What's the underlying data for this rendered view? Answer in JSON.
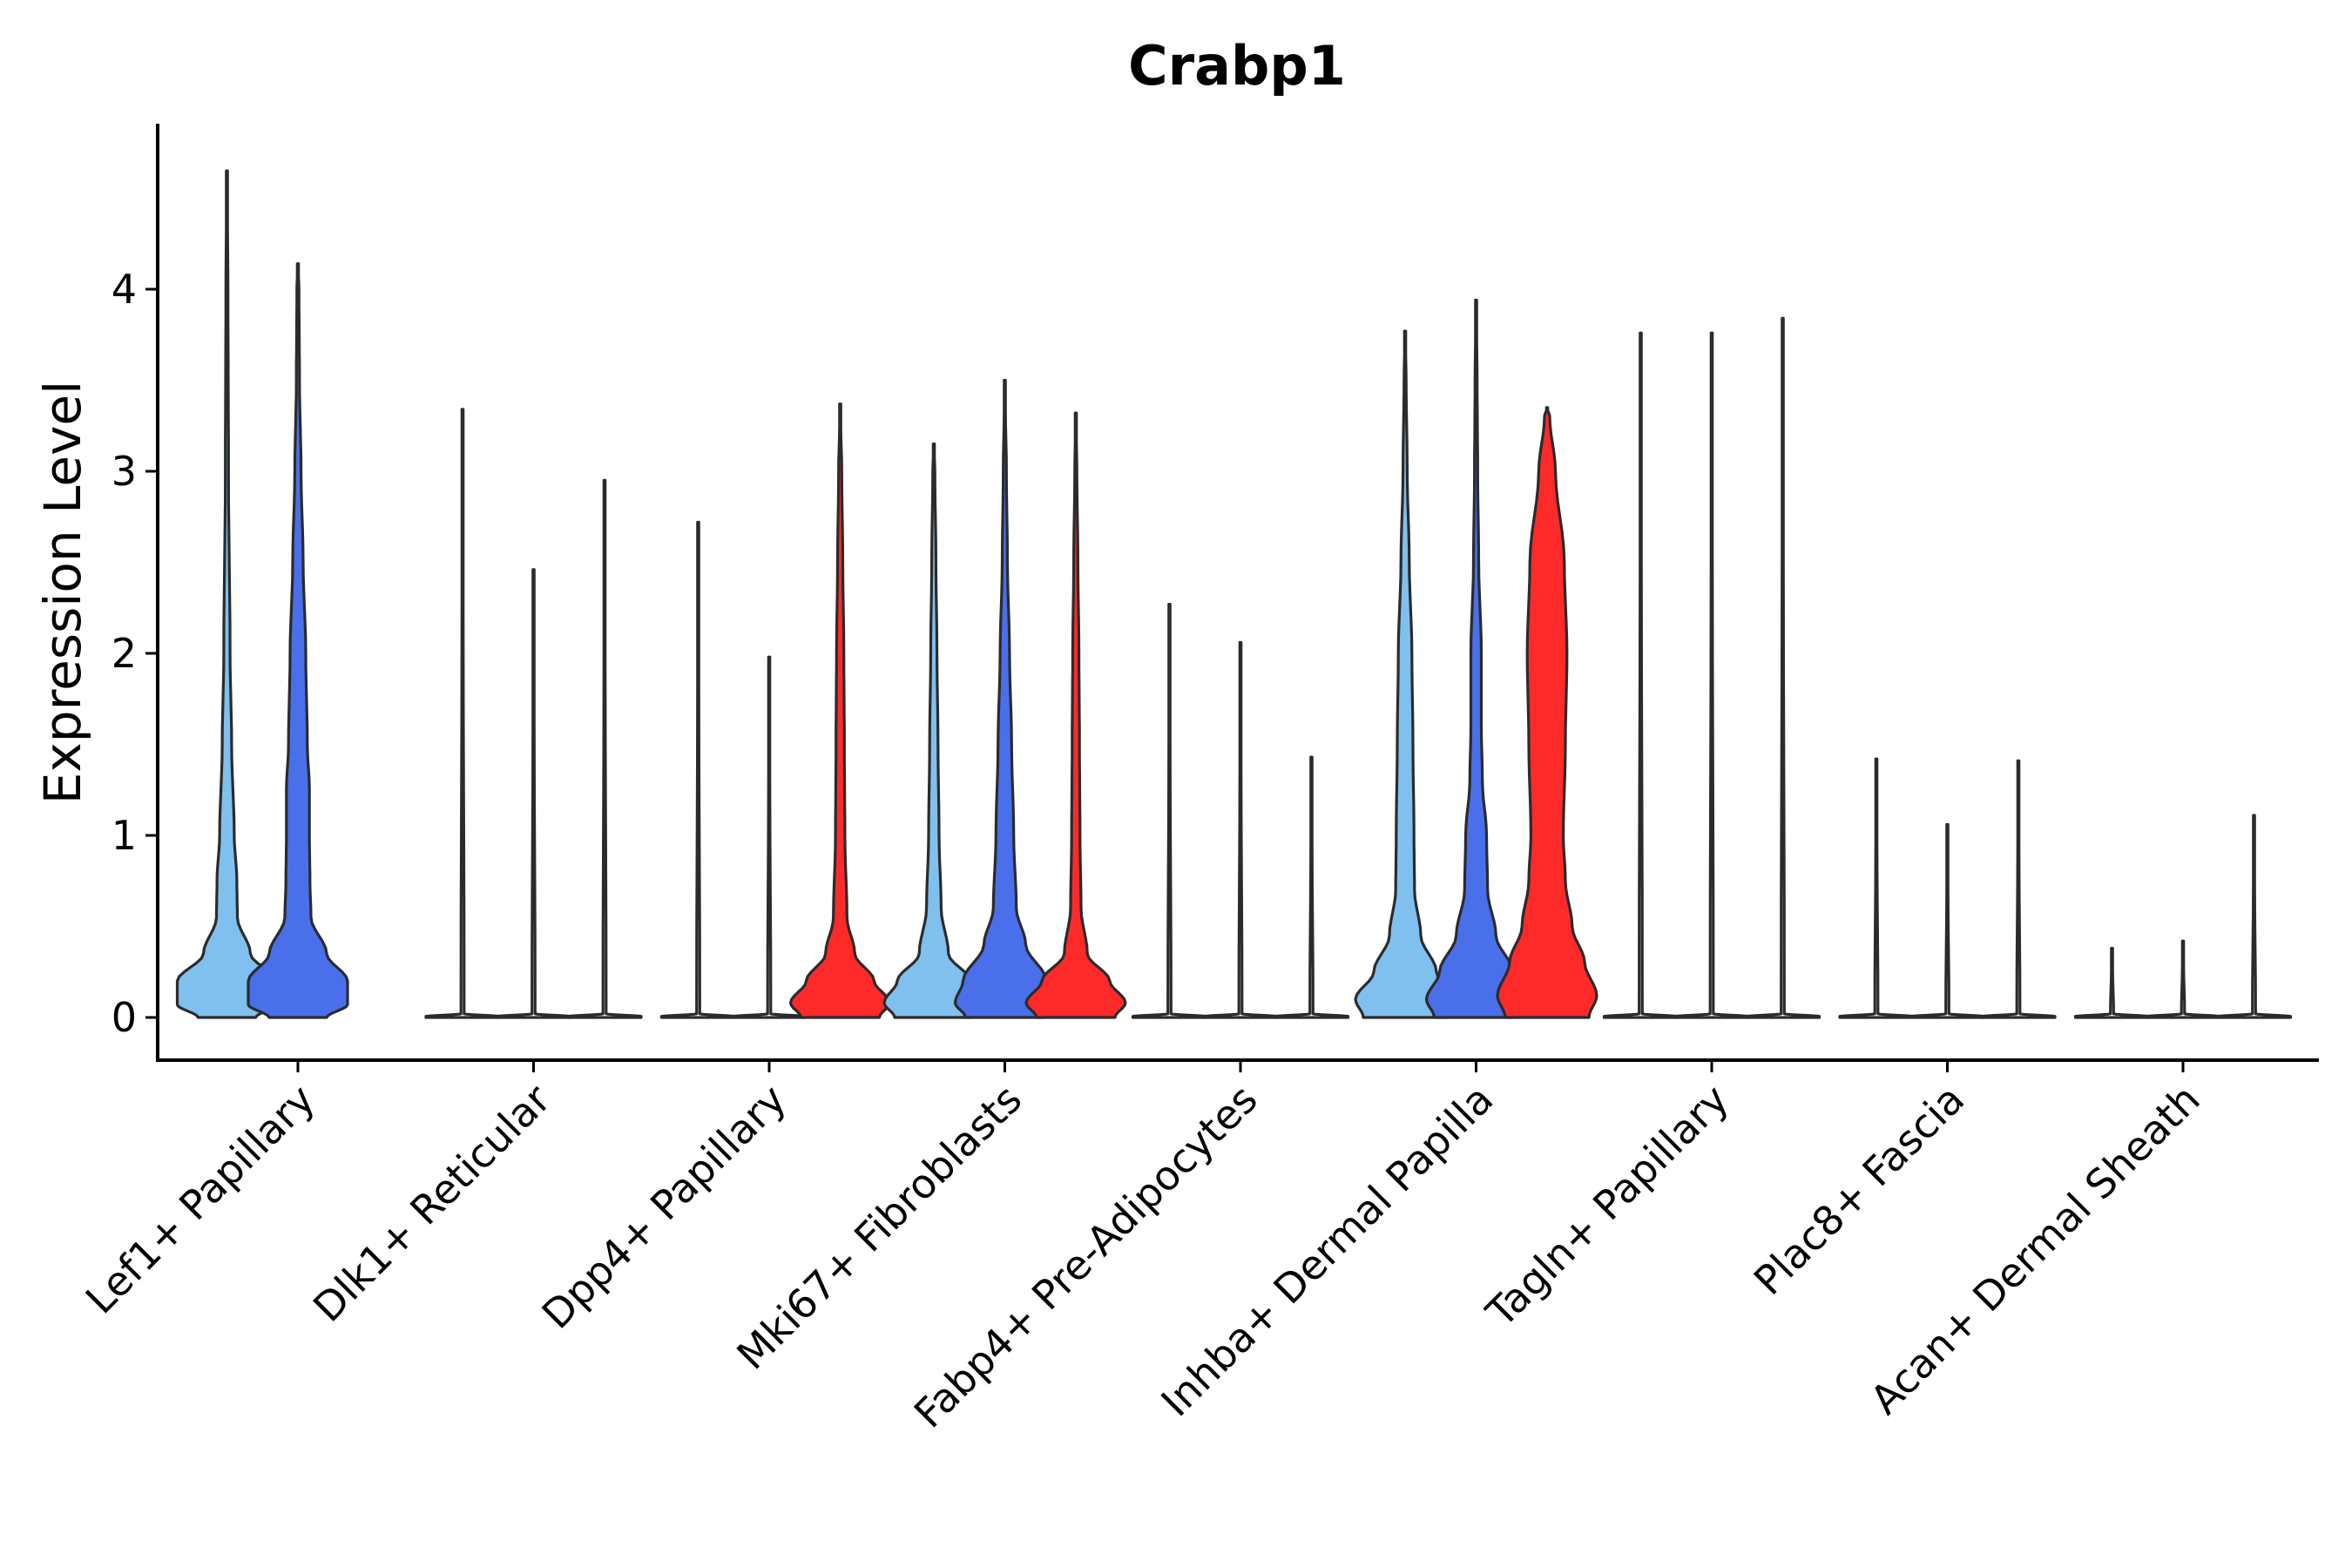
{
  "chart_data": {
    "type": "violin",
    "title": "Crabp1",
    "xlabel": "",
    "ylabel": "Expression Level",
    "ylim": [
      -0.23,
      4.9
    ],
    "yticks": [
      0,
      1,
      2,
      3,
      4
    ],
    "categories": [
      "Lef1+ Papillary",
      "Dlk1+ Reticular",
      "Dpp4+ Papillary",
      "Mki67+ Fibroblasts",
      "Fabp4+ Pre-Adipocytes",
      "Inhba+ Dermal Papilla",
      "Tagln+ Papillary",
      "Plac8+ Fascia",
      "Acan+ Dermal Sheath"
    ],
    "series": [
      {
        "name": "group1",
        "color": "#80c0ee"
      },
      {
        "name": "group2",
        "color": "#4a6fea"
      },
      {
        "name": "group3",
        "color": "#fe2a2a"
      }
    ],
    "violins": [
      {
        "category": 0,
        "series": 0,
        "max": 4.65,
        "shape": [
          [
            0,
            0.55
          ],
          [
            0.07,
            0.95
          ],
          [
            0.2,
            0.95
          ],
          [
            0.35,
            0.45
          ],
          [
            0.55,
            0.2
          ],
          [
            0.75,
            0.19
          ],
          [
            1.0,
            0.14
          ],
          [
            1.5,
            0.09
          ],
          [
            2.0,
            0.06
          ],
          [
            3.0,
            0.03
          ],
          [
            4.0,
            0.02
          ]
        ]
      },
      {
        "category": 0,
        "series": 1,
        "max": 4.14,
        "shape": [
          [
            0,
            0.55
          ],
          [
            0.07,
            0.95
          ],
          [
            0.2,
            0.95
          ],
          [
            0.35,
            0.55
          ],
          [
            0.55,
            0.25
          ],
          [
            0.75,
            0.23
          ],
          [
            1.0,
            0.22
          ],
          [
            1.25,
            0.22
          ],
          [
            1.5,
            0.18
          ],
          [
            2.0,
            0.15
          ],
          [
            2.5,
            0.1
          ],
          [
            3.0,
            0.06
          ],
          [
            3.5,
            0.03
          ],
          [
            4.0,
            0.02
          ]
        ]
      },
      {
        "category": 0,
        "series": 2,
        "max": 0.0,
        "shape": []
      },
      {
        "category": 1,
        "series": 0,
        "max": 3.34,
        "shape": []
      },
      {
        "category": 1,
        "series": 1,
        "max": 2.46,
        "shape": []
      },
      {
        "category": 1,
        "series": 2,
        "max": 2.95,
        "shape": []
      },
      {
        "category": 2,
        "series": 0,
        "max": 2.72,
        "shape": []
      },
      {
        "category": 2,
        "series": 1,
        "max": 1.98,
        "shape": []
      },
      {
        "category": 2,
        "series": 2,
        "max": 3.37,
        "shape": [
          [
            0,
            0.75
          ],
          [
            0.08,
            0.95
          ],
          [
            0.2,
            0.65
          ],
          [
            0.35,
            0.28
          ],
          [
            0.55,
            0.13
          ],
          [
            1.0,
            0.09
          ],
          [
            1.5,
            0.08
          ],
          [
            2.0,
            0.07
          ],
          [
            2.5,
            0.05
          ],
          [
            3.0,
            0.03
          ]
        ]
      },
      {
        "category": 3,
        "series": 0,
        "max": 3.15,
        "shape": [
          [
            0,
            0.75
          ],
          [
            0.08,
            0.95
          ],
          [
            0.2,
            0.7
          ],
          [
            0.35,
            0.28
          ],
          [
            0.6,
            0.14
          ],
          [
            1.0,
            0.1
          ],
          [
            1.5,
            0.08
          ],
          [
            2.0,
            0.06
          ],
          [
            2.5,
            0.04
          ],
          [
            3.0,
            0.02
          ]
        ]
      },
      {
        "category": 3,
        "series": 1,
        "max": 3.5,
        "shape": [
          [
            0,
            0.75
          ],
          [
            0.08,
            0.95
          ],
          [
            0.2,
            0.8
          ],
          [
            0.4,
            0.4
          ],
          [
            0.6,
            0.22
          ],
          [
            1.0,
            0.17
          ],
          [
            1.5,
            0.13
          ],
          [
            2.0,
            0.09
          ],
          [
            2.5,
            0.05
          ],
          [
            3.0,
            0.03
          ]
        ]
      },
      {
        "category": 3,
        "series": 2,
        "max": 3.32,
        "shape": [
          [
            0,
            0.75
          ],
          [
            0.08,
            0.95
          ],
          [
            0.2,
            0.65
          ],
          [
            0.35,
            0.22
          ],
          [
            0.6,
            0.1
          ],
          [
            1.0,
            0.08
          ],
          [
            1.5,
            0.07
          ],
          [
            2.0,
            0.06
          ],
          [
            2.5,
            0.04
          ],
          [
            3.0,
            0.02
          ]
        ]
      },
      {
        "category": 4,
        "series": 0,
        "max": 2.27,
        "shape": []
      },
      {
        "category": 4,
        "series": 1,
        "max": 2.06,
        "shape": []
      },
      {
        "category": 4,
        "series": 2,
        "max": 1.43,
        "shape": []
      },
      {
        "category": 5,
        "series": 0,
        "max": 3.77,
        "shape": [
          [
            0,
            0.8
          ],
          [
            0.1,
            0.95
          ],
          [
            0.25,
            0.6
          ],
          [
            0.45,
            0.3
          ],
          [
            0.7,
            0.18
          ],
          [
            1.0,
            0.17
          ],
          [
            1.5,
            0.15
          ],
          [
            2.0,
            0.13
          ],
          [
            2.5,
            0.08
          ],
          [
            3.0,
            0.04
          ],
          [
            3.5,
            0.02
          ]
        ]
      },
      {
        "category": 5,
        "series": 1,
        "max": 3.94,
        "shape": [
          [
            0,
            0.8
          ],
          [
            0.1,
            0.95
          ],
          [
            0.25,
            0.7
          ],
          [
            0.45,
            0.38
          ],
          [
            0.7,
            0.22
          ],
          [
            1.0,
            0.2
          ],
          [
            1.3,
            0.12
          ],
          [
            1.6,
            0.1
          ],
          [
            2.0,
            0.1
          ],
          [
            2.5,
            0.05
          ],
          [
            3.0,
            0.03
          ],
          [
            3.5,
            0.02
          ]
        ]
      },
      {
        "category": 5,
        "series": 2,
        "max": 3.35,
        "shape": [
          [
            0,
            0.8
          ],
          [
            0.12,
            0.95
          ],
          [
            0.3,
            0.72
          ],
          [
            0.5,
            0.48
          ],
          [
            0.75,
            0.35
          ],
          [
            1.0,
            0.31
          ],
          [
            1.5,
            0.35
          ],
          [
            2.0,
            0.38
          ],
          [
            2.5,
            0.33
          ],
          [
            3.0,
            0.16
          ],
          [
            3.3,
            0.05
          ]
        ]
      },
      {
        "category": 6,
        "series": 0,
        "max": 3.76,
        "shape": []
      },
      {
        "category": 6,
        "series": 1,
        "max": 3.76,
        "shape": []
      },
      {
        "category": 6,
        "series": 2,
        "max": 3.84,
        "shape": []
      },
      {
        "category": 7,
        "series": 0,
        "max": 1.42,
        "shape": []
      },
      {
        "category": 7,
        "series": 1,
        "max": 1.06,
        "shape": []
      },
      {
        "category": 7,
        "series": 2,
        "max": 1.41,
        "shape": []
      },
      {
        "category": 8,
        "series": 0,
        "max": 0.38,
        "shape": []
      },
      {
        "category": 8,
        "series": 1,
        "max": 0.42,
        "shape": []
      },
      {
        "category": 8,
        "series": 2,
        "max": 1.11,
        "shape": []
      }
    ]
  }
}
